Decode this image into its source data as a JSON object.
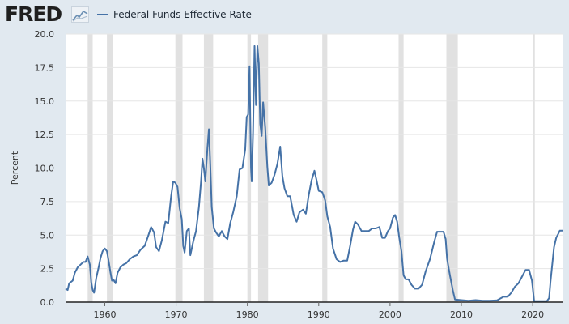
{
  "brand": {
    "logo_text": "FRED",
    "logo_icon": "fred-line-graph-icon"
  },
  "legend": {
    "label": "Federal Funds Effective Rate",
    "color": "#4572a7"
  },
  "colors": {
    "background": "#e1e9f0",
    "plot_background": "#ffffff",
    "recession": "#e1e1e1",
    "series": "#4572a7",
    "grid": "#e6e6e6"
  },
  "chart_data": {
    "type": "line",
    "title": "",
    "xlabel": "",
    "ylabel": "Percent",
    "xlim": [
      1954.5,
      2024.3
    ],
    "ylim": [
      0,
      20
    ],
    "grid": "horizontal",
    "legend_position": "top-left",
    "x_ticks": [
      1960,
      1970,
      1980,
      1990,
      2000,
      2010,
      2020
    ],
    "x_tick_labels": [
      "1960",
      "1970",
      "1980",
      "1990",
      "2000",
      "2010",
      "2020"
    ],
    "y_ticks": [
      0,
      2.5,
      5,
      7.5,
      10,
      12.5,
      15,
      17.5,
      20
    ],
    "y_tick_labels": [
      "0.0",
      "2.5",
      "5.0",
      "7.5",
      "10.0",
      "12.5",
      "15.0",
      "17.5",
      "20.0"
    ],
    "recessions": [
      [
        1957.6,
        1958.3
      ],
      [
        1960.3,
        1961.1
      ],
      [
        1969.9,
        1970.9
      ],
      [
        1973.9,
        1975.2
      ],
      [
        1980.0,
        1980.5
      ],
      [
        1981.5,
        1982.9
      ],
      [
        1990.5,
        1991.2
      ],
      [
        2001.2,
        2001.9
      ],
      [
        2007.9,
        2009.5
      ],
      [
        2020.1,
        2020.3
      ]
    ],
    "series": [
      {
        "name": "Federal Funds Effective Rate",
        "points": [
          [
            1954.5,
            1.0
          ],
          [
            1954.8,
            0.9
          ],
          [
            1955.0,
            1.4
          ],
          [
            1955.5,
            1.6
          ],
          [
            1955.8,
            2.2
          ],
          [
            1956.2,
            2.6
          ],
          [
            1956.6,
            2.8
          ],
          [
            1957.0,
            3.0
          ],
          [
            1957.3,
            3.0
          ],
          [
            1957.6,
            3.4
          ],
          [
            1957.9,
            2.8
          ],
          [
            1958.1,
            1.5
          ],
          [
            1958.3,
            0.9
          ],
          [
            1958.5,
            0.7
          ],
          [
            1958.8,
            1.8
          ],
          [
            1959.1,
            2.5
          ],
          [
            1959.4,
            3.3
          ],
          [
            1959.7,
            3.8
          ],
          [
            1960.0,
            4.0
          ],
          [
            1960.3,
            3.8
          ],
          [
            1960.6,
            2.9
          ],
          [
            1960.8,
            2.2
          ],
          [
            1961.0,
            1.6
          ],
          [
            1961.2,
            1.7
          ],
          [
            1961.5,
            1.4
          ],
          [
            1961.8,
            2.2
          ],
          [
            1962.2,
            2.6
          ],
          [
            1962.6,
            2.8
          ],
          [
            1963.0,
            2.9
          ],
          [
            1963.5,
            3.2
          ],
          [
            1964.0,
            3.4
          ],
          [
            1964.5,
            3.5
          ],
          [
            1965.0,
            3.9
          ],
          [
            1965.6,
            4.2
          ],
          [
            1966.0,
            4.8
          ],
          [
            1966.5,
            5.6
          ],
          [
            1966.9,
            5.2
          ],
          [
            1967.2,
            4.1
          ],
          [
            1967.6,
            3.8
          ],
          [
            1968.0,
            4.6
          ],
          [
            1968.5,
            6.0
          ],
          [
            1968.9,
            5.9
          ],
          [
            1969.3,
            7.9
          ],
          [
            1969.6,
            9.0
          ],
          [
            1969.9,
            8.9
          ],
          [
            1970.2,
            8.6
          ],
          [
            1970.5,
            7.0
          ],
          [
            1970.8,
            6.2
          ],
          [
            1971.0,
            4.2
          ],
          [
            1971.2,
            3.7
          ],
          [
            1971.5,
            5.3
          ],
          [
            1971.8,
            5.5
          ],
          [
            1972.0,
            3.5
          ],
          [
            1972.4,
            4.5
          ],
          [
            1972.8,
            5.3
          ],
          [
            1973.2,
            7.1
          ],
          [
            1973.5,
            9.0
          ],
          [
            1973.7,
            10.7
          ],
          [
            1973.9,
            10.0
          ],
          [
            1974.1,
            9.0
          ],
          [
            1974.4,
            11.5
          ],
          [
            1974.6,
            12.9
          ],
          [
            1974.8,
            10.1
          ],
          [
            1975.0,
            7.1
          ],
          [
            1975.3,
            5.5
          ],
          [
            1975.6,
            5.2
          ],
          [
            1976.0,
            4.9
          ],
          [
            1976.4,
            5.3
          ],
          [
            1976.8,
            4.9
          ],
          [
            1977.2,
            4.7
          ],
          [
            1977.6,
            5.9
          ],
          [
            1978.0,
            6.7
          ],
          [
            1978.5,
            7.9
          ],
          [
            1978.9,
            9.9
          ],
          [
            1979.3,
            10.0
          ],
          [
            1979.7,
            11.4
          ],
          [
            1979.9,
            13.8
          ],
          [
            1980.1,
            14.0
          ],
          [
            1980.3,
            17.6
          ],
          [
            1980.5,
            10.0
          ],
          [
            1980.6,
            9.0
          ],
          [
            1980.8,
            12.8
          ],
          [
            1981.0,
            19.1
          ],
          [
            1981.2,
            14.7
          ],
          [
            1981.4,
            19.1
          ],
          [
            1981.6,
            17.8
          ],
          [
            1981.8,
            13.3
          ],
          [
            1982.0,
            12.4
          ],
          [
            1982.2,
            14.9
          ],
          [
            1982.5,
            13.0
          ],
          [
            1982.8,
            10.1
          ],
          [
            1983.0,
            8.7
          ],
          [
            1983.4,
            8.9
          ],
          [
            1983.8,
            9.5
          ],
          [
            1984.2,
            10.3
          ],
          [
            1984.6,
            11.6
          ],
          [
            1984.9,
            9.4
          ],
          [
            1985.2,
            8.5
          ],
          [
            1985.6,
            7.9
          ],
          [
            1986.0,
            7.9
          ],
          [
            1986.5,
            6.5
          ],
          [
            1986.9,
            6.0
          ],
          [
            1987.3,
            6.7
          ],
          [
            1987.8,
            6.9
          ],
          [
            1988.2,
            6.6
          ],
          [
            1988.6,
            8.0
          ],
          [
            1989.0,
            9.1
          ],
          [
            1989.4,
            9.8
          ],
          [
            1989.7,
            9.1
          ],
          [
            1990.0,
            8.3
          ],
          [
            1990.5,
            8.2
          ],
          [
            1990.9,
            7.6
          ],
          [
            1991.2,
            6.4
          ],
          [
            1991.6,
            5.6
          ],
          [
            1992.0,
            4.0
          ],
          [
            1992.5,
            3.2
          ],
          [
            1993.0,
            3.0
          ],
          [
            1993.5,
            3.1
          ],
          [
            1994.0,
            3.1
          ],
          [
            1994.4,
            4.2
          ],
          [
            1994.8,
            5.4
          ],
          [
            1995.1,
            6.0
          ],
          [
            1995.5,
            5.8
          ],
          [
            1996.0,
            5.3
          ],
          [
            1996.5,
            5.3
          ],
          [
            1997.0,
            5.3
          ],
          [
            1997.5,
            5.5
          ],
          [
            1998.0,
            5.5
          ],
          [
            1998.5,
            5.6
          ],
          [
            1998.9,
            4.8
          ],
          [
            1999.3,
            4.8
          ],
          [
            1999.7,
            5.3
          ],
          [
            2000.0,
            5.5
          ],
          [
            2000.4,
            6.3
          ],
          [
            2000.7,
            6.5
          ],
          [
            2001.0,
            6.0
          ],
          [
            2001.3,
            4.8
          ],
          [
            2001.6,
            3.8
          ],
          [
            2001.9,
            2.0
          ],
          [
            2002.2,
            1.7
          ],
          [
            2002.6,
            1.7
          ],
          [
            2003.0,
            1.3
          ],
          [
            2003.5,
            1.0
          ],
          [
            2004.0,
            1.0
          ],
          [
            2004.5,
            1.3
          ],
          [
            2005.0,
            2.3
          ],
          [
            2005.6,
            3.2
          ],
          [
            2006.2,
            4.5
          ],
          [
            2006.6,
            5.25
          ],
          [
            2007.0,
            5.25
          ],
          [
            2007.5,
            5.25
          ],
          [
            2007.8,
            4.7
          ],
          [
            2008.0,
            3.2
          ],
          [
            2008.4,
            2.0
          ],
          [
            2008.8,
            0.9
          ],
          [
            2009.1,
            0.2
          ],
          [
            2010.0,
            0.15
          ],
          [
            2011.0,
            0.1
          ],
          [
            2012.0,
            0.15
          ],
          [
            2013.0,
            0.1
          ],
          [
            2014.0,
            0.1
          ],
          [
            2015.0,
            0.13
          ],
          [
            2015.9,
            0.4
          ],
          [
            2016.5,
            0.4
          ],
          [
            2017.0,
            0.7
          ],
          [
            2017.5,
            1.15
          ],
          [
            2018.0,
            1.4
          ],
          [
            2018.5,
            1.9
          ],
          [
            2019.0,
            2.4
          ],
          [
            2019.5,
            2.4
          ],
          [
            2019.9,
            1.6
          ],
          [
            2020.2,
            0.08
          ],
          [
            2021.0,
            0.08
          ],
          [
            2022.0,
            0.08
          ],
          [
            2022.3,
            0.3
          ],
          [
            2022.5,
            1.5
          ],
          [
            2022.8,
            3.1
          ],
          [
            2023.0,
            4.1
          ],
          [
            2023.3,
            4.8
          ],
          [
            2023.6,
            5.1
          ],
          [
            2023.8,
            5.33
          ],
          [
            2024.3,
            5.33
          ]
        ]
      }
    ]
  }
}
